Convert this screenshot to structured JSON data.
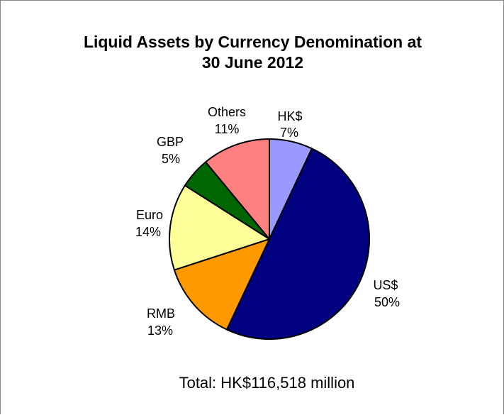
{
  "chart_data": {
    "type": "pie",
    "title_lines": [
      "Liquid Assets by Currency Denomination at",
      "30 June 2012"
    ],
    "footer": "Total: HK$116,518 million",
    "slices": [
      {
        "label": "HK$",
        "value_label": "7%",
        "value": 7,
        "color": "#9999ff"
      },
      {
        "label": "US$",
        "value_label": "50%",
        "value": 50,
        "color": "#000080"
      },
      {
        "label": "RMB",
        "value_label": "13%",
        "value": 13,
        "color": "#ff9900"
      },
      {
        "label": "Euro",
        "value_label": "14%",
        "value": 14,
        "color": "#ffff99"
      },
      {
        "label": "GBP",
        "value_label": "5%",
        "value": 5,
        "color": "#006600"
      },
      {
        "label": "Others",
        "value_label": "11%",
        "value": 11,
        "color": "#ff8080"
      }
    ]
  }
}
